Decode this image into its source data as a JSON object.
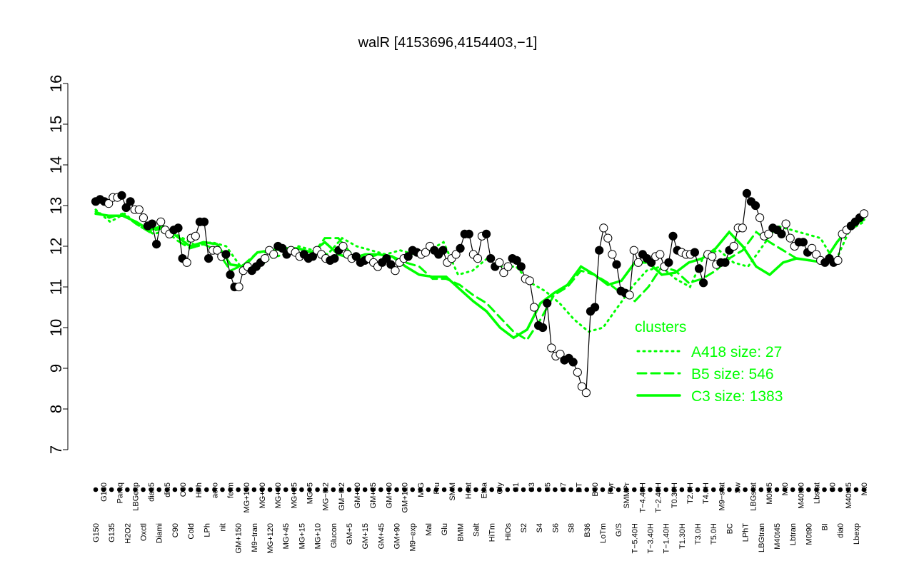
{
  "chart_data": {
    "type": "line",
    "title": "walR [4153696,4154403,−1]",
    "xlabel": "",
    "ylabel": "",
    "ylim": [
      7,
      16
    ],
    "yticks": [
      7,
      8,
      9,
      10,
      11,
      12,
      13,
      14,
      15,
      16
    ],
    "grid": false,
    "legend_position": "right",
    "legend_title": "clusters",
    "legend_color": "#00ff00",
    "point_fill_dark": "#000000",
    "point_fill_light": "#ffffff",
    "x_tick_labels": [
      "G150",
      "G180",
      "G135",
      "Paraq",
      "H2O2",
      "LBGexp",
      "Oxctl",
      "dia15",
      "Diami",
      "dia5",
      "C90",
      "C30",
      "Cold",
      "HPh",
      "LPh",
      "aero",
      "nit",
      "ferm",
      "GM+150",
      "MG+150",
      "M9−tran",
      "MG+90",
      "MG+120",
      "MG+60",
      "MG+45",
      "MG+25",
      "MG+15",
      "MG+5",
      "MG+10",
      "MG−0.2",
      "Glucon",
      "GM−0.2",
      "GM+5",
      "GM+10",
      "GM+15",
      "GM+25",
      "GM+45",
      "GM+60",
      "GM+90",
      "GM+120",
      "M9−exp",
      "M/G",
      "Mal",
      "Fru",
      "Glu",
      "SMM",
      "BMM",
      "Heat",
      "Salt",
      "Etha",
      "HiTm",
      "Gly",
      "HiOs",
      "S1",
      "S2",
      "S3",
      "S4",
      "S5",
      "S6",
      "S7",
      "S8",
      "BT",
      "B36",
      "B60",
      "LoTm",
      "Pyr",
      "G/S",
      "SMMPr",
      "T−5.40H",
      "T−4.40H",
      "T−3.40H",
      "T−2.40H",
      "T−1.40H",
      "T0.30H",
      "T1.30H",
      "T2.0H",
      "T3.0H",
      "T4.0H",
      "T5.0H",
      "M9−stat",
      "BC",
      "Sw",
      "LPhT",
      "LBGstat",
      "LBGtran",
      "M0t45",
      "M40t45",
      "Mt0",
      "Lbtran",
      "M40t90",
      "M0t90",
      "Lbstat",
      "BI",
      "S0",
      "dia0",
      "M40t45",
      "Lbexp",
      "Mt0"
    ],
    "legend": [
      {
        "name": "A418 size: 27",
        "style": "dotted"
      },
      {
        "name": "B5 size: 546",
        "style": "dashed"
      },
      {
        "name": "C3 size: 1383",
        "style": "solid"
      }
    ],
    "series": [
      {
        "name": "walR",
        "style": "points",
        "values": [
          13.1,
          13.15,
          13.1,
          13.05,
          13.2,
          13.2,
          13.25,
          12.95,
          13.1,
          12.9,
          12.9,
          12.7,
          12.5,
          12.55,
          12.05,
          12.6,
          12.4,
          12.3,
          12.4,
          12.45,
          11.7,
          11.6,
          12.2,
          12.25,
          12.6,
          12.6,
          11.7,
          11.9,
          11.9,
          11.75,
          11.8,
          11.3,
          11.0,
          11.0,
          11.4,
          11.5,
          11.4,
          11.5,
          11.6,
          11.7,
          11.9,
          11.8,
          12.0,
          11.95,
          11.8,
          11.9,
          11.85,
          11.75,
          11.8,
          11.7,
          11.75,
          11.9,
          11.8,
          11.7,
          11.65,
          11.7,
          11.9,
          12.0,
          11.8,
          11.7,
          11.75,
          11.6,
          11.65,
          11.7,
          11.6,
          11.5,
          11.6,
          11.7,
          11.55,
          11.4,
          11.6,
          11.7,
          11.75,
          11.9,
          11.85,
          11.8,
          11.85,
          12.0,
          11.9,
          11.8,
          11.9,
          11.6,
          11.7,
          11.8,
          11.95,
          12.3,
          12.3,
          11.8,
          11.7,
          12.25,
          12.3,
          11.7,
          11.5,
          11.6,
          11.35,
          11.5,
          11.7,
          11.65,
          11.5,
          11.2,
          11.15,
          10.5,
          10.05,
          10.0,
          10.6,
          9.5,
          9.3,
          9.35,
          9.2,
          9.25,
          9.15,
          8.9,
          8.55,
          8.4,
          10.4,
          10.5,
          11.9,
          12.45,
          12.2,
          11.8,
          11.55,
          10.9,
          10.85,
          10.8,
          11.9,
          11.6,
          11.8,
          11.7,
          11.6,
          11.75,
          11.8,
          11.5,
          11.6,
          12.25,
          11.9,
          11.85,
          11.8,
          11.8,
          11.85,
          11.45,
          11.1,
          11.8,
          11.75,
          11.55,
          11.6,
          11.6,
          11.9,
          12.0,
          12.45,
          12.45,
          13.3,
          13.1,
          13.0,
          12.7,
          12.25,
          12.3,
          12.45,
          12.4,
          12.3,
          12.55,
          12.2,
          12.0,
          12.1,
          12.1,
          11.85,
          11.95,
          11.8,
          11.65,
          11.6,
          11.7,
          11.6,
          11.65,
          12.3,
          12.4,
          12.5,
          12.6,
          12.7,
          12.8
        ]
      },
      {
        "name": "A418 size: 27",
        "style": "dotted",
        "values": [
          12.9,
          12.6,
          12.8,
          12.5,
          12.3,
          12.4,
          12.2,
          12.0,
          12.1,
          12.0,
          11.5,
          11.4,
          11.7,
          11.8,
          12.0,
          11.9,
          11.8,
          12.2,
          12.0,
          11.9,
          11.8,
          11.9,
          11.8,
          11.9,
          12.1,
          11.3,
          11.4,
          11.7,
          11.5,
          11.5,
          11.1,
          10.9,
          10.6,
          10.2,
          9.9,
          10.0,
          10.5,
          11.0,
          11.4,
          11.5,
          11.2,
          11.0,
          11.8,
          11.9,
          11.6,
          11.5,
          12.0,
          12.5,
          12.4,
          12.3,
          12.2,
          11.6,
          12.4,
          12.6
        ]
      },
      {
        "name": "B5 size: 546",
        "style": "dashed",
        "values": [
          12.85,
          12.7,
          12.8,
          12.55,
          12.35,
          12.45,
          12.15,
          11.95,
          12.05,
          11.9,
          11.4,
          11.55,
          11.85,
          11.85,
          11.95,
          11.85,
          11.75,
          12.2,
          12.2,
          11.8,
          11.7,
          11.8,
          11.75,
          11.6,
          11.5,
          11.2,
          11.2,
          11.05,
          10.8,
          10.6,
          10.25,
          9.9,
          9.7,
          10.2,
          10.8,
          11.0,
          11.4,
          11.3,
          11.1,
          10.85,
          10.65,
          11.0,
          11.5,
          11.4,
          11.1,
          11.2,
          11.4,
          11.7,
          11.9,
          12.35,
          12.1,
          11.9,
          11.7,
          11.65,
          11.6,
          12.1,
          12.55,
          12.7
        ]
      },
      {
        "name": "C3 size: 1383",
        "style": "solid",
        "values": [
          12.8,
          12.75,
          12.75,
          12.6,
          12.4,
          12.5,
          12.25,
          12.0,
          12.1,
          12.05,
          11.55,
          11.5,
          11.85,
          11.9,
          11.95,
          11.95,
          11.85,
          12.1,
          11.8,
          11.7,
          11.8,
          11.8,
          11.75,
          11.5,
          11.3,
          11.25,
          11.25,
          10.95,
          10.65,
          10.4,
          10.0,
          9.75,
          9.95,
          10.6,
          10.85,
          11.05,
          11.5,
          11.3,
          11.05,
          11.15,
          11.6,
          11.6,
          11.3,
          11.35,
          11.6,
          11.7,
          11.95,
          12.35,
          12.0,
          11.5,
          11.3,
          11.6,
          11.7,
          11.65,
          11.6,
          12.1,
          12.5,
          12.65
        ]
      }
    ]
  }
}
